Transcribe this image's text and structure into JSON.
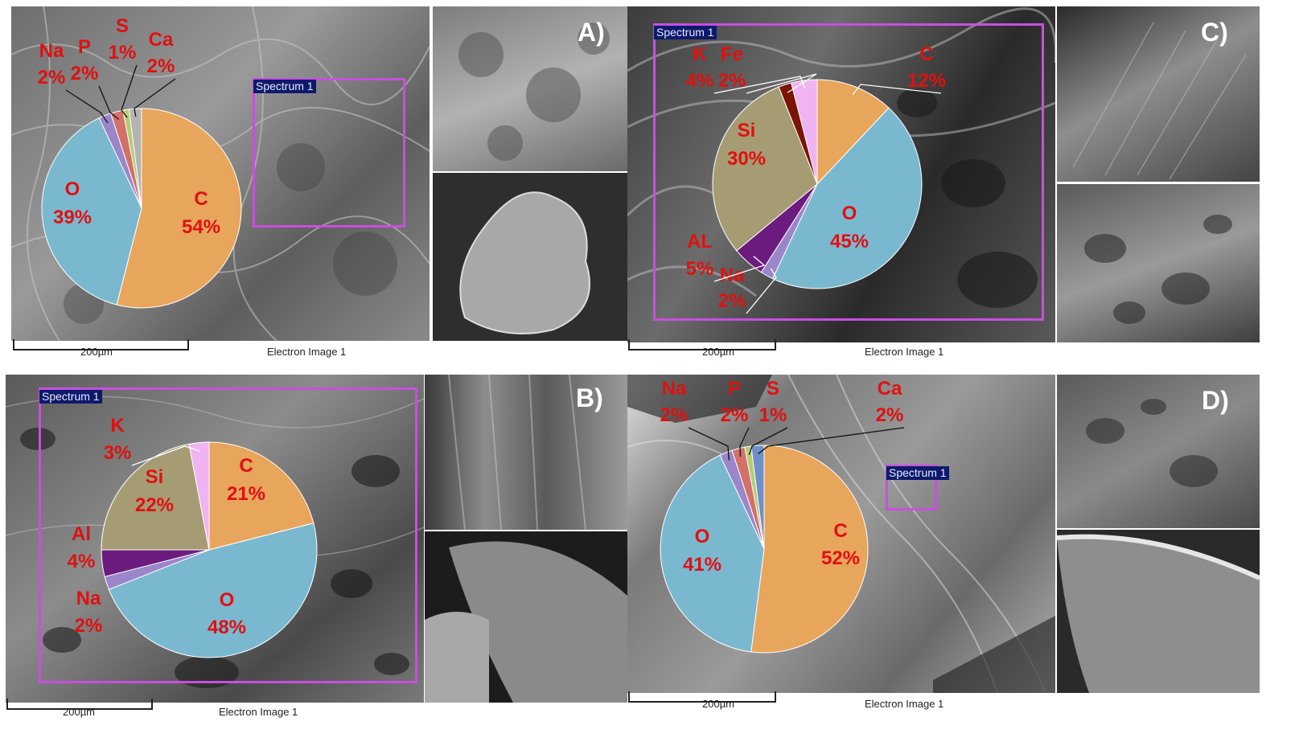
{
  "figure": {
    "panels": [
      {
        "letter": "A)",
        "spectrum_label": "Spectrum 1",
        "scale_label": "200µm",
        "image_label": "Electron Image 1"
      },
      {
        "letter": "C)",
        "spectrum_label": "Spectrum 1",
        "scale_label": "200µm",
        "image_label": "Electron Image 1"
      },
      {
        "letter": "B)",
        "spectrum_label": "Spectrum 1",
        "scale_label": "200µm",
        "image_label": "Electron Image 1"
      },
      {
        "letter": "D)",
        "spectrum_label": "Spectrum 1",
        "scale_label": "200µm",
        "image_label": "Electron Image 1"
      }
    ]
  },
  "colors": {
    "C": "#e8a55c",
    "O": "#7ab8d0",
    "Na": "#9a86c8",
    "P": "#d2706a",
    "S": "#b6cc72",
    "Ca": "#b4b4b4",
    "Ca_D": "#6f8fc8",
    "Si": "#a69c74",
    "K": "#f0b4f2",
    "Fe": "#7a1406",
    "Al": "#6c1b7e",
    "label": "#e01010",
    "spectrum_box": "#c84fe0"
  },
  "chart_data": [
    {
      "type": "pie",
      "panel": "A)",
      "slices": [
        {
          "label": "C",
          "value": 54,
          "text": "54%"
        },
        {
          "label": "O",
          "value": 39,
          "text": "39%"
        },
        {
          "label": "Na",
          "value": 2,
          "text": "2%"
        },
        {
          "label": "P",
          "value": 2,
          "text": "2%"
        },
        {
          "label": "S",
          "value": 1,
          "text": "1%"
        },
        {
          "label": "Ca",
          "value": 2,
          "text": "2%"
        }
      ]
    },
    {
      "type": "pie",
      "panel": "C)",
      "slices": [
        {
          "label": "C",
          "value": 12,
          "text": "12%"
        },
        {
          "label": "O",
          "value": 45,
          "text": "45%"
        },
        {
          "label": "Na",
          "value": 2,
          "text": "2%"
        },
        {
          "label": "AL",
          "value": 5,
          "text": "5%"
        },
        {
          "label": "Si",
          "value": 30,
          "text": "30%"
        },
        {
          "label": "Fe",
          "value": 2,
          "text": "2%"
        },
        {
          "label": "K",
          "value": 4,
          "text": "4%"
        }
      ]
    },
    {
      "type": "pie",
      "panel": "B)",
      "slices": [
        {
          "label": "C",
          "value": 21,
          "text": "21%"
        },
        {
          "label": "O",
          "value": 48,
          "text": "48%"
        },
        {
          "label": "Na",
          "value": 2,
          "text": "2%"
        },
        {
          "label": "Al",
          "value": 4,
          "text": "4%"
        },
        {
          "label": "Si",
          "value": 22,
          "text": "22%"
        },
        {
          "label": "K",
          "value": 3,
          "text": "3%"
        }
      ]
    },
    {
      "type": "pie",
      "panel": "D)",
      "slices": [
        {
          "label": "C",
          "value": 52,
          "text": "52%"
        },
        {
          "label": "O",
          "value": 41,
          "text": "41%"
        },
        {
          "label": "Na",
          "value": 2,
          "text": "2%"
        },
        {
          "label": "P",
          "value": 2,
          "text": "2%"
        },
        {
          "label": "S",
          "value": 1,
          "text": "1%"
        },
        {
          "label": "Ca",
          "value": 2,
          "text": "2%"
        }
      ]
    }
  ]
}
